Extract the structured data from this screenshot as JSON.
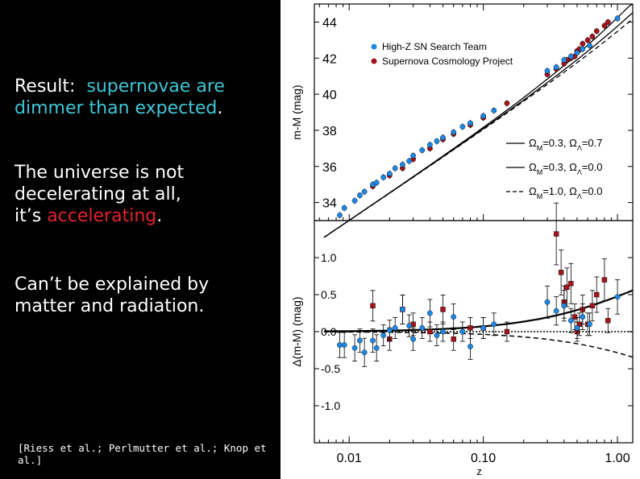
{
  "slide": {
    "result_prefix": "Result:",
    "result_highlight": "supernovae are dimmer than expected",
    "result_suffix": ".",
    "universe_line1": "The universe is not",
    "universe_line2": "decelerating at all,",
    "universe_prefix": "it’s",
    "universe_highlight": "accelerating",
    "universe_suffix": ".",
    "explain_line1": "Can’t be explained by",
    "explain_line2": "matter and radiation.",
    "citation": "[Riess et al.; Perlmutter et al.; Knop et al.]"
  },
  "colors": {
    "highlight": "#3ec7d8",
    "red": "#e3202a",
    "blue_points": "#1e88e5",
    "red_points": "#a3141c"
  },
  "chart_data": [
    {
      "type": "scatter",
      "panel": "top",
      "ylabel": "m-M (mag)",
      "ylim": [
        33,
        45
      ],
      "xlim": [
        0.0055,
        1.3
      ],
      "xscale": "log",
      "yticks": [
        34,
        36,
        38,
        40,
        42,
        44
      ],
      "ytick_labels": [
        "34",
        "36",
        "38",
        "40",
        "42",
        "44"
      ],
      "legend_position": "top-right",
      "legend": [
        "High-Z SN Search Team",
        "Supernova Cosmology Project"
      ],
      "model_legend": [
        {
          "omega_m": "0.3",
          "omega_l": "0.7",
          "style": "solid"
        },
        {
          "omega_m": "0.3",
          "omega_l": "0.0",
          "style": "solid"
        },
        {
          "omega_m": "1.0",
          "omega_l": "0.0",
          "style": "dashed"
        }
      ],
      "omega_m_label": "Ω",
      "m_sub": "M",
      "lambda_sub": "Λ",
      "eq": "=",
      "sep": ", ",
      "series": [
        {
          "name": "High-Z SN Search Team",
          "points": [
            [
              0.0085,
              33.3
            ],
            [
              0.0092,
              33.7
            ],
            [
              0.011,
              34.1
            ],
            [
              0.012,
              34.4
            ],
            [
              0.013,
              34.6
            ],
            [
              0.015,
              35.0
            ],
            [
              0.016,
              35.1
            ],
            [
              0.018,
              35.4
            ],
            [
              0.02,
              35.6
            ],
            [
              0.022,
              35.9
            ],
            [
              0.025,
              36.1
            ],
            [
              0.028,
              36.3
            ],
            [
              0.03,
              36.6
            ],
            [
              0.035,
              36.9
            ],
            [
              0.04,
              37.2
            ],
            [
              0.045,
              37.4
            ],
            [
              0.05,
              37.6
            ],
            [
              0.06,
              37.9
            ],
            [
              0.07,
              38.2
            ],
            [
              0.08,
              38.4
            ],
            [
              0.1,
              38.8
            ],
            [
              0.12,
              39.1
            ],
            [
              0.3,
              41.3
            ],
            [
              0.35,
              41.5
            ],
            [
              0.4,
              41.9
            ],
            [
              0.45,
              42.1
            ],
            [
              0.5,
              42.3
            ],
            [
              0.55,
              42.5
            ],
            [
              0.62,
              42.7
            ],
            [
              1.0,
              44.2
            ]
          ],
          "residuals": [
            [
              0.0085,
              -0.18
            ],
            [
              0.0092,
              -0.18
            ],
            [
              0.011,
              -0.22
            ],
            [
              0.012,
              -0.12
            ],
            [
              0.013,
              -0.28
            ],
            [
              0.015,
              -0.12
            ],
            [
              0.016,
              -0.22
            ],
            [
              0.018,
              -0.05
            ],
            [
              0.02,
              0.02
            ],
            [
              0.022,
              0.05
            ],
            [
              0.025,
              0.3
            ],
            [
              0.028,
              0.08
            ],
            [
              0.03,
              -0.1
            ],
            [
              0.035,
              0.05
            ],
            [
              0.04,
              0.25
            ],
            [
              0.045,
              -0.05
            ],
            [
              0.05,
              0.0
            ],
            [
              0.06,
              0.2
            ],
            [
              0.07,
              0.0
            ],
            [
              0.08,
              -0.2
            ],
            [
              0.1,
              0.05
            ],
            [
              0.12,
              0.1
            ],
            [
              0.3,
              0.4
            ],
            [
              0.35,
              0.28
            ],
            [
              0.4,
              0.35
            ],
            [
              0.45,
              0.15
            ],
            [
              0.5,
              0.05
            ],
            [
              0.55,
              0.2
            ],
            [
              0.62,
              0.1
            ],
            [
              1.0,
              0.47
            ]
          ]
        },
        {
          "name": "Supernova Cosmology Project",
          "points": [
            [
              0.015,
              34.9
            ],
            [
              0.02,
              35.5
            ],
            [
              0.025,
              35.9
            ],
            [
              0.03,
              36.4
            ],
            [
              0.04,
              37.0
            ],
            [
              0.05,
              37.5
            ],
            [
              0.06,
              37.8
            ],
            [
              0.08,
              38.3
            ],
            [
              0.1,
              38.7
            ],
            [
              0.15,
              39.5
            ],
            [
              0.3,
              41.1
            ],
            [
              0.35,
              41.4
            ],
            [
              0.4,
              41.7
            ],
            [
              0.42,
              41.9
            ],
            [
              0.45,
              42.0
            ],
            [
              0.48,
              42.1
            ],
            [
              0.5,
              42.4
            ],
            [
              0.52,
              42.5
            ],
            [
              0.55,
              42.8
            ],
            [
              0.6,
              43.0
            ],
            [
              0.65,
              43.2
            ],
            [
              0.7,
              43.5
            ],
            [
              0.8,
              43.8
            ],
            [
              0.85,
              44.0
            ]
          ],
          "residuals": [
            [
              0.015,
              0.35
            ],
            [
              0.02,
              -0.1
            ],
            [
              0.025,
              0.3
            ],
            [
              0.03,
              0.1
            ],
            [
              0.04,
              0.0
            ],
            [
              0.05,
              0.3
            ],
            [
              0.06,
              -0.1
            ],
            [
              0.08,
              0.05
            ],
            [
              0.1,
              0.05
            ],
            [
              0.15,
              0.0
            ],
            [
              0.35,
              1.32
            ],
            [
              0.38,
              0.8
            ],
            [
              0.4,
              0.4
            ],
            [
              0.42,
              0.6
            ],
            [
              0.45,
              0.65
            ],
            [
              0.48,
              0.2
            ],
            [
              0.5,
              0.0
            ],
            [
              0.52,
              0.1
            ],
            [
              0.55,
              0.3
            ],
            [
              0.6,
              0.1
            ],
            [
              0.65,
              0.35
            ],
            [
              0.7,
              0.5
            ],
            [
              0.8,
              0.7
            ],
            [
              0.85,
              0.15
            ]
          ]
        }
      ]
    },
    {
      "type": "scatter",
      "panel": "bottom",
      "ylabel": "Δ(m-M) (mag)",
      "xlabel": "z",
      "ylim": [
        -1.5,
        1.5
      ],
      "xlim": [
        0.0055,
        1.3
      ],
      "xscale": "log",
      "yticks": [
        -1.0,
        -0.5,
        0.0,
        0.5,
        1.0
      ],
      "ytick_labels": [
        "-1.0",
        "-0.5",
        "0.0",
        "0.5",
        "1.0"
      ],
      "xticks": [
        0.01,
        0.1,
        1.0
      ],
      "xtick_labels": [
        "0.01",
        "0.10",
        "1.00"
      ]
    }
  ]
}
